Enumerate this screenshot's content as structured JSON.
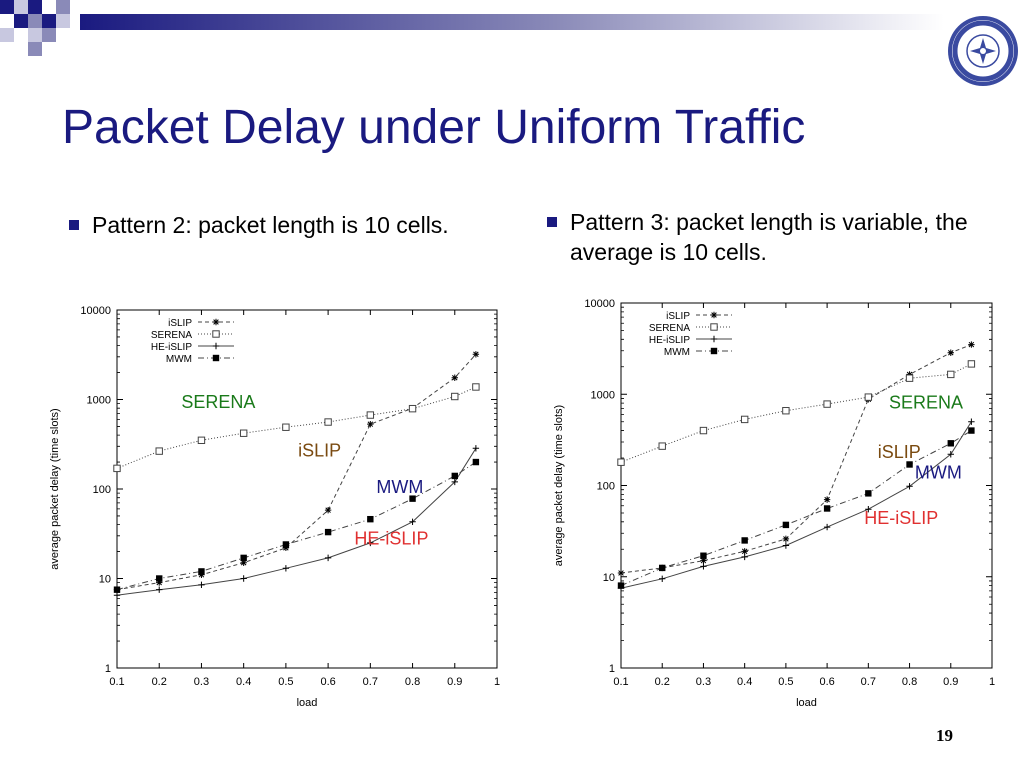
{
  "slide": {
    "title": "Packet Delay under Uniform Traffic",
    "slide_number": "19",
    "bullets": [
      "Pattern 2: packet length is 10 cells.",
      "Pattern 3: packet length is variable, the average is 10 cells."
    ],
    "colors": {
      "title": "#1a1a80",
      "bullet": "#1a1a80",
      "SERENA": "#1a7a1a",
      "iSLIP": "#7a4a10",
      "MWM": "#1a1a80",
      "HE-iSLIP": "#e03030"
    },
    "decoration_icon": "blue-gradient-squares-icon",
    "logo_icon": "university-seal-icon"
  },
  "chart_data": [
    {
      "type": "line",
      "xlabel": "load",
      "ylabel": "average packet delay (time slots)",
      "xlim": [
        0.1,
        1
      ],
      "ylim": [
        1,
        10000
      ],
      "yscale": "log",
      "x_ticks": [
        "0.1",
        "0.2",
        "0.3",
        "0.4",
        "0.5",
        "0.6",
        "0.7",
        "0.8",
        "0.9",
        "1"
      ],
      "y_ticks": [
        "1",
        "10",
        "100",
        "1000",
        "10000"
      ],
      "legend_position": "top-left",
      "series": [
        {
          "name": "iSLIP",
          "marker": "star",
          "dash": "4,3",
          "x": [
            0.1,
            0.2,
            0.3,
            0.4,
            0.5,
            0.6,
            0.7,
            0.8,
            0.9,
            0.95
          ],
          "y": [
            7.5,
            9,
            11,
            15,
            22,
            58,
            530,
            800,
            1750,
            3200
          ]
        },
        {
          "name": "SERENA",
          "marker": "open-square",
          "dash": "1,2",
          "x": [
            0.1,
            0.2,
            0.3,
            0.4,
            0.5,
            0.6,
            0.7,
            0.8,
            0.9,
            0.95
          ],
          "y": [
            170,
            265,
            350,
            420,
            490,
            560,
            670,
            790,
            1080,
            1380
          ]
        },
        {
          "name": "HE-iSLIP",
          "marker": "plus",
          "dash": "",
          "x": [
            0.1,
            0.2,
            0.3,
            0.4,
            0.5,
            0.6,
            0.7,
            0.8,
            0.9,
            0.95
          ],
          "y": [
            6.5,
            7.5,
            8.5,
            10,
            13,
            17,
            25,
            43,
            120,
            285
          ]
        },
        {
          "name": "MWM",
          "marker": "filled-square",
          "dash": "6,3,1,3",
          "x": [
            0.1,
            0.2,
            0.3,
            0.4,
            0.5,
            0.6,
            0.7,
            0.8,
            0.9,
            0.95
          ],
          "y": [
            7.5,
            10,
            12,
            17,
            24,
            33,
            46,
            78,
            140,
            200
          ]
        }
      ],
      "annotations": [
        {
          "text": "SERENA",
          "x": 0.34,
          "y": 800,
          "color": "#1a7a1a"
        },
        {
          "text": "iSLIP",
          "x": 0.58,
          "y": 230,
          "color": "#7a4a10"
        },
        {
          "text": "MWM",
          "x": 0.77,
          "y": 90,
          "color": "#1a1a80"
        },
        {
          "text": "HE-iSLIP",
          "x": 0.75,
          "y": 24,
          "color": "#e03030"
        }
      ]
    },
    {
      "type": "line",
      "xlabel": "load",
      "ylabel": "average packet delay (time slots)",
      "xlim": [
        0.1,
        1
      ],
      "ylim": [
        1,
        10000
      ],
      "yscale": "log",
      "x_ticks": [
        "0.1",
        "0.2",
        "0.3",
        "0.4",
        "0.5",
        "0.6",
        "0.7",
        "0.8",
        "0.9",
        "1"
      ],
      "y_ticks": [
        "1",
        "10",
        "100",
        "1000",
        "10000"
      ],
      "legend_position": "top-left",
      "series": [
        {
          "name": "iSLIP",
          "marker": "star",
          "dash": "4,3",
          "x": [
            0.1,
            0.2,
            0.3,
            0.4,
            0.5,
            0.6,
            0.7,
            0.8,
            0.9,
            0.95
          ],
          "y": [
            11,
            12.5,
            15,
            19,
            26,
            70,
            880,
            1650,
            2850,
            3500
          ]
        },
        {
          "name": "SERENA",
          "marker": "open-square",
          "dash": "1,2",
          "x": [
            0.1,
            0.2,
            0.3,
            0.4,
            0.5,
            0.6,
            0.7,
            0.8,
            0.9,
            0.95
          ],
          "y": [
            180,
            270,
            400,
            530,
            660,
            780,
            930,
            1500,
            1650,
            2150
          ]
        },
        {
          "name": "HE-iSLIP",
          "marker": "plus",
          "dash": "",
          "x": [
            0.1,
            0.2,
            0.3,
            0.4,
            0.5,
            0.6,
            0.7,
            0.8,
            0.9,
            0.95
          ],
          "y": [
            7.5,
            9.5,
            13,
            16.5,
            22,
            35,
            55,
            98,
            220,
            500
          ]
        },
        {
          "name": "MWM",
          "marker": "filled-square",
          "dash": "6,3,1,3",
          "x": [
            0.1,
            0.2,
            0.3,
            0.4,
            0.5,
            0.6,
            0.7,
            0.8,
            0.9,
            0.95
          ],
          "y": [
            8,
            12.5,
            17,
            25,
            37,
            56,
            82,
            170,
            290,
            400
          ]
        }
      ],
      "annotations": [
        {
          "text": "SERENA",
          "x": 0.84,
          "y": 700,
          "color": "#1a7a1a",
          "dx": 0,
          "ax": "frac"
        },
        {
          "text": "iSLIP",
          "x": 0.775,
          "y": 200,
          "color": "#7a4a10"
        },
        {
          "text": "MWM",
          "x": 0.87,
          "y": 120,
          "color": "#1a1a80"
        },
        {
          "text": "HE-iSLIP",
          "x": 0.78,
          "y": 38,
          "color": "#e03030"
        }
      ]
    }
  ]
}
